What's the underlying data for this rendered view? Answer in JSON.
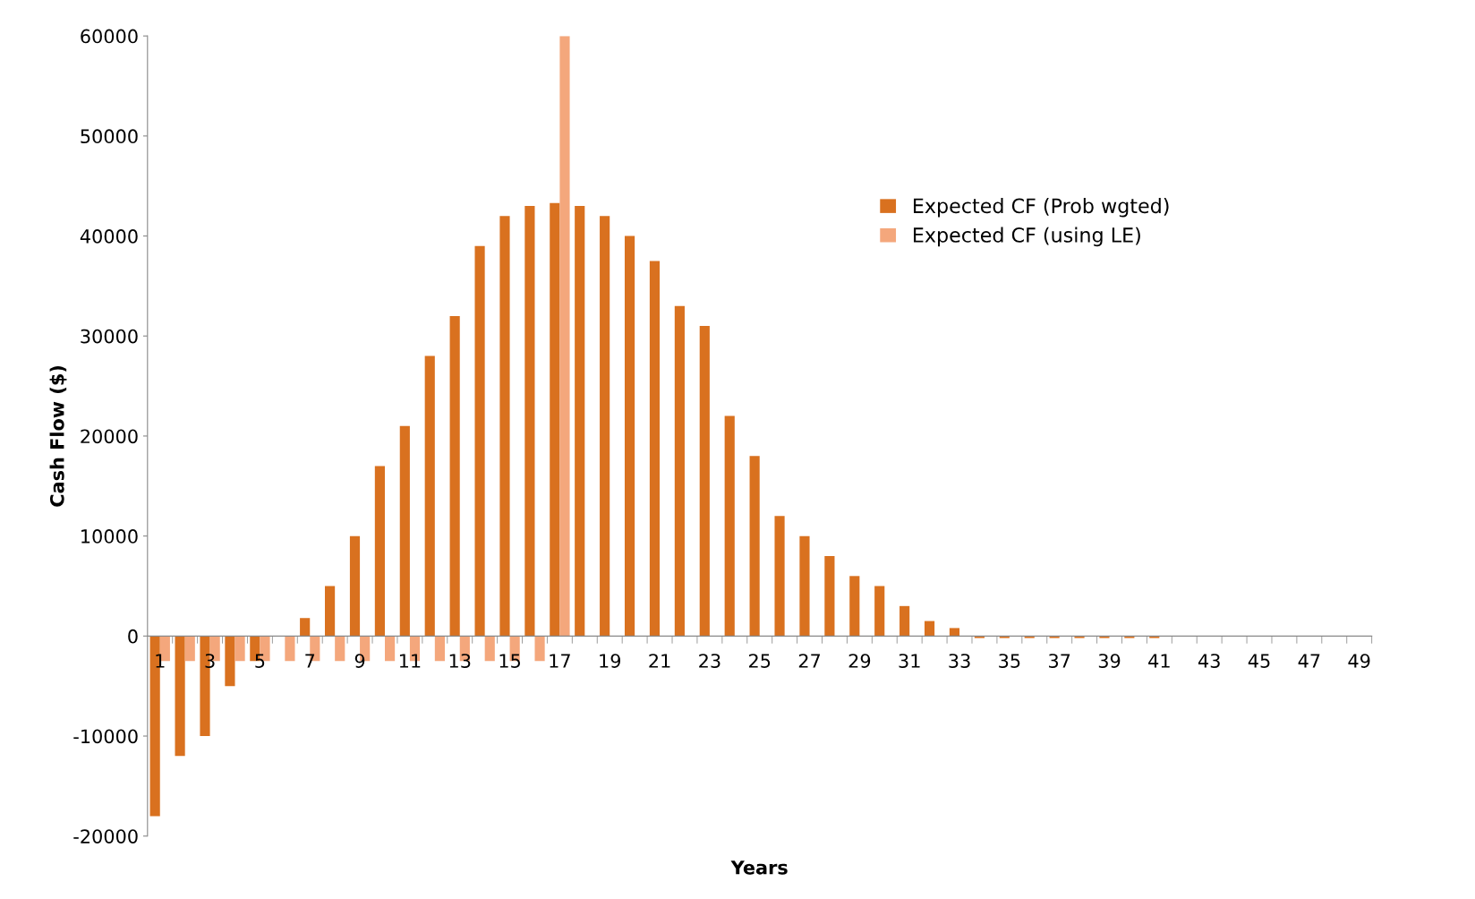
{
  "chart_data": {
    "type": "bar",
    "xlabel": "Years",
    "ylabel": "Cash Flow ($)",
    "categories": [
      "1",
      null,
      "3",
      null,
      "5",
      null,
      "7",
      null,
      "9",
      null,
      "11",
      null,
      "13",
      null,
      "15",
      null,
      "17",
      null,
      "19",
      null,
      "21",
      null,
      "23",
      null,
      "25",
      null,
      "27",
      null,
      "29",
      null,
      "31",
      null,
      "33",
      null,
      "35",
      null,
      "37",
      null,
      "39",
      null,
      "41",
      null,
      "43",
      null,
      "45",
      null,
      "47",
      null,
      "49"
    ],
    "series": [
      {
        "name": "Expected CF (Prob wgted)",
        "color": "#d9711f",
        "values": [
          -18000,
          -12000,
          -10000,
          -5000,
          -2500,
          0,
          1800,
          5000,
          10000,
          17000,
          21000,
          28000,
          32000,
          39000,
          42000,
          43000,
          43300,
          43000,
          42000,
          40000,
          37500,
          33000,
          31000,
          22000,
          18000,
          12000,
          10000,
          8000,
          6000,
          5000,
          3000,
          1500,
          800,
          -200,
          -200,
          -200,
          -200,
          -200,
          -200,
          -200,
          -200,
          0,
          0,
          0,
          0,
          0,
          0,
          0,
          0
        ]
      },
      {
        "name": "Expected CF (using LE)",
        "color": "#f4a77c",
        "values": [
          -2500,
          -2500,
          -2500,
          -2500,
          -2500,
          -2500,
          -2500,
          -2500,
          -2500,
          -2500,
          -2500,
          -2500,
          -2500,
          -2500,
          -2500,
          -2500,
          60000,
          null,
          null,
          null,
          null,
          null,
          null,
          null,
          null,
          null,
          null,
          null,
          null,
          null,
          null,
          null,
          null,
          null,
          null,
          null,
          null,
          null,
          null,
          null,
          null,
          null,
          null,
          null,
          null,
          null,
          null,
          null,
          null
        ]
      }
    ],
    "ylim": [
      -20000,
      60000
    ],
    "yticks": [
      -20000,
      -10000,
      0,
      10000,
      20000,
      30000,
      40000,
      50000,
      60000
    ],
    "grid": false,
    "legend": "top right"
  }
}
